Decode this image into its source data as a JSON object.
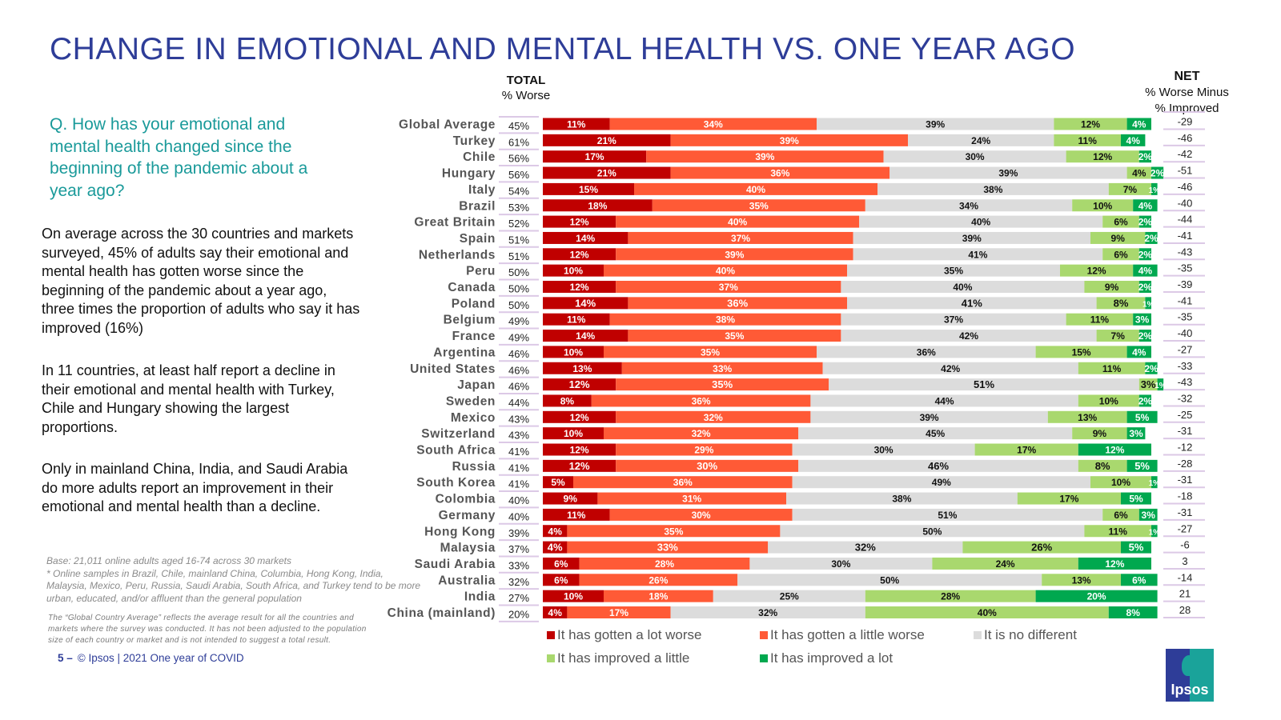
{
  "slide": {
    "title": "CHANGE IN EMOTIONAL AND MENTAL HEALTH VS. ONE YEAR AGO",
    "question": "Q. How has your emotional and mental health changed since the beginning of the pandemic about a year ago?",
    "paragraphs": [
      "On average across the 30 countries and markets surveyed, 45% of adults say their emotional and mental health has gotten worse since the beginning of the pandemic about a year ago, three times the proportion of adults who say it has improved (16%)",
      "In 11 countries, at least half report a decline in their emotional and mental health with Turkey, Chile and Hungary showing the largest proportions.",
      "Only in mainland China, India, and Saudi Arabia do more adults report an improvement in their emotional and mental health than a decline."
    ],
    "base_note": "Base: 21,011 online adults aged 16-74 across 30 markets\n* Online samples in Brazil, Chile, mainland China, Columbia, Hong Kong, India, Malaysia, Mexico, Peru, Russia, Saudi Arabia, South Africa, and Turkey tend to be more urban, educated, and/or affluent than the general population",
    "gca_note": "The “Global  Country Average” reflects the average result for all the countries and markets where the survey was conducted. It has not been adjusted to the population size of each country or market and is not intended to suggest a total result.",
    "footer_page": "5 –",
    "footer_text": "© Ipsos | 2021 One year of COVID",
    "total_header": "TOTAL",
    "total_subheader": "% Worse",
    "net_header": "NET",
    "net_subheader_1": "% Worse Minus",
    "net_subheader_2": "% Improved",
    "logo_text": "Ipsos"
  },
  "chart_data": {
    "type": "bar",
    "orientation": "horizontal",
    "stacked": true,
    "title": "CHANGE IN EMOTIONAL AND MENTAL HEALTH VS. ONE YEAR AGO",
    "xlabel": "",
    "ylabel": "",
    "xlim": [
      0,
      100
    ],
    "legend_position": "bottom",
    "colors": {
      "lot_worse": "#c00000",
      "little_worse": "#ff5a36",
      "no_different": "#dcdcdc",
      "improved_little": "#a9d86e",
      "improved_lot": "#00a84f"
    },
    "legend": [
      "It has gotten a lot worse",
      "It has gotten a little worse",
      "It is no different",
      "It has improved a little",
      "It has improved a lot"
    ],
    "categories": [
      "Global Average",
      "Turkey",
      "Chile",
      "Hungary",
      "Italy",
      "Brazil",
      "Great Britain",
      "Spain",
      "Netherlands",
      "Peru",
      "Canada",
      "Poland",
      "Belgium",
      "France",
      "Argentina",
      "United States",
      "Japan",
      "Sweden",
      "Mexico",
      "Switzerland",
      "South Africa",
      "Russia",
      "South Korea",
      "Colombia",
      "Germany",
      "Hong Kong",
      "Malaysia",
      "Saudi Arabia",
      "Australia",
      "India",
      "China (mainland)"
    ],
    "total_worse": [
      45,
      61,
      56,
      56,
      54,
      53,
      52,
      51,
      51,
      50,
      50,
      50,
      49,
      49,
      46,
      46,
      46,
      44,
      43,
      43,
      41,
      41,
      41,
      40,
      40,
      39,
      37,
      33,
      32,
      27,
      20
    ],
    "net": [
      -29,
      -46,
      -42,
      -51,
      -46,
      -40,
      -44,
      -41,
      -43,
      -35,
      -39,
      -41,
      -35,
      -40,
      -27,
      -33,
      -43,
      -32,
      -25,
      -31,
      -12,
      -28,
      -31,
      -18,
      -31,
      -27,
      -6,
      3,
      -14,
      21,
      28
    ],
    "series": [
      {
        "name": "It has gotten a lot worse",
        "values": [
          11,
          21,
          17,
          21,
          15,
          18,
          12,
          14,
          12,
          10,
          12,
          14,
          11,
          14,
          10,
          13,
          12,
          8,
          12,
          10,
          12,
          12,
          5,
          9,
          11,
          4,
          4,
          6,
          6,
          10,
          4
        ]
      },
      {
        "name": "It has gotten a little worse",
        "values": [
          34,
          39,
          39,
          36,
          40,
          35,
          40,
          37,
          39,
          40,
          37,
          36,
          38,
          35,
          35,
          33,
          35,
          36,
          32,
          32,
          29,
          30,
          36,
          31,
          30,
          35,
          33,
          28,
          26,
          18,
          17
        ]
      },
      {
        "name": "It is no different",
        "values": [
          39,
          24,
          30,
          39,
          38,
          34,
          40,
          39,
          41,
          35,
          40,
          41,
          37,
          42,
          36,
          42,
          51,
          44,
          39,
          45,
          30,
          46,
          49,
          38,
          51,
          50,
          32,
          30,
          50,
          25,
          32
        ]
      },
      {
        "name": "It has improved a little",
        "values": [
          12,
          11,
          12,
          4,
          7,
          10,
          6,
          9,
          6,
          12,
          9,
          8,
          11,
          7,
          15,
          11,
          3,
          10,
          13,
          9,
          17,
          8,
          10,
          17,
          6,
          11,
          26,
          24,
          13,
          28,
          40
        ]
      },
      {
        "name": "It has improved a lot",
        "values": [
          4,
          4,
          2,
          2,
          1,
          4,
          2,
          2,
          2,
          4,
          2,
          1,
          3,
          2,
          4,
          2,
          1,
          2,
          5,
          3,
          12,
          5,
          1,
          5,
          3,
          1,
          5,
          12,
          6,
          20,
          8
        ]
      }
    ],
    "bold_label_rows": [
      "Poland",
      "Japan",
      "Russia",
      "Malaysia"
    ]
  }
}
